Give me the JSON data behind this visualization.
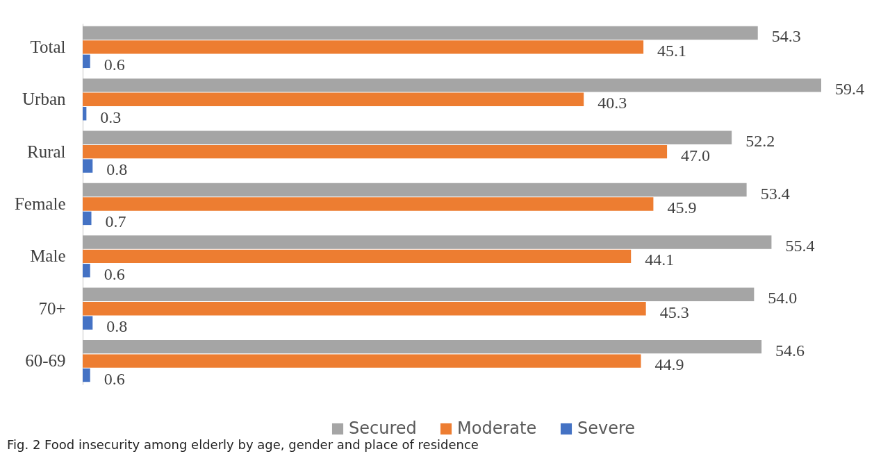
{
  "chart_data": {
    "type": "bar",
    "orientation": "horizontal",
    "categories": [
      "Total",
      "Urban",
      "Rural",
      "Female",
      "Male",
      "70+",
      "60-69"
    ],
    "series": [
      {
        "name": "Secured",
        "color": "#a5a5a5",
        "values": [
          54.3,
          59.4,
          52.2,
          53.4,
          55.4,
          54.0,
          54.6
        ],
        "value_labels": [
          "54.3",
          "59.4",
          "52.2",
          "53.4",
          "55.4",
          "54.0",
          "54.6"
        ]
      },
      {
        "name": "Moderate",
        "color": "#ed7d31",
        "values": [
          45.1,
          40.3,
          47.0,
          45.9,
          44.1,
          45.3,
          44.9
        ],
        "value_labels": [
          "45.1",
          "40.3",
          "47.0",
          "45.9",
          "44.1",
          "45.3",
          "44.9"
        ]
      },
      {
        "name": "Severe",
        "color": "#4472c4",
        "values": [
          0.6,
          0.3,
          0.8,
          0.7,
          0.6,
          0.8,
          0.6
        ],
        "value_labels": [
          "0.6",
          "0.3",
          "0.8",
          "0.7",
          "0.6",
          "0.8",
          "0.6"
        ]
      }
    ],
    "legend": "bottom",
    "tick_labels": "y",
    "annotations": [
      "Fig. 2 Food insecurity among elderly by age, gender and place of residence"
    ]
  }
}
